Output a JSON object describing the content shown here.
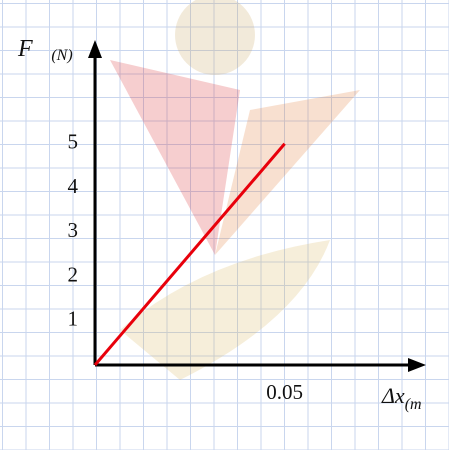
{
  "chart_data": {
    "type": "line",
    "y_label": "F⃗",
    "y_label_sub": "(N)",
    "x_label": "Δx",
    "x_label_sub": "(m",
    "x": [
      0,
      0.05
    ],
    "series": [
      {
        "color": "#e8000b",
        "values": [
          0,
          5
        ]
      }
    ],
    "xlim": [
      0,
      0.087
    ],
    "ylim": [
      0,
      7.3
    ],
    "xticks": [
      0.05
    ],
    "yticks": [
      1,
      2,
      3,
      4,
      5
    ]
  }
}
